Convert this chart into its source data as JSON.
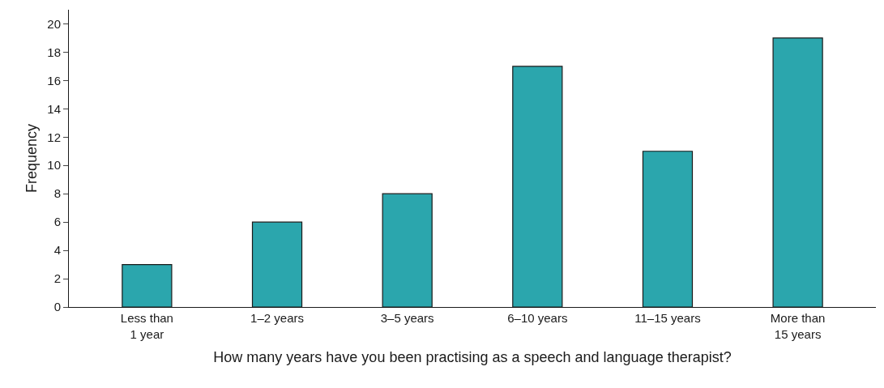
{
  "chart_data": {
    "type": "bar",
    "xlabel": "How many years have you been practising as a speech and language therapist?",
    "ylabel": "Frequency",
    "categories": [
      "Less than\n1 year",
      "1–2 years",
      "3–5 years",
      "6–10 years",
      "11–15 years",
      "More than\n15 years"
    ],
    "values": [
      3,
      6,
      8,
      17,
      11,
      19
    ],
    "color": "#2ba6ad",
    "ylim": [
      0,
      21
    ],
    "yticks": [
      0,
      2,
      4,
      6,
      8,
      10,
      12,
      14,
      16,
      18,
      20
    ]
  }
}
